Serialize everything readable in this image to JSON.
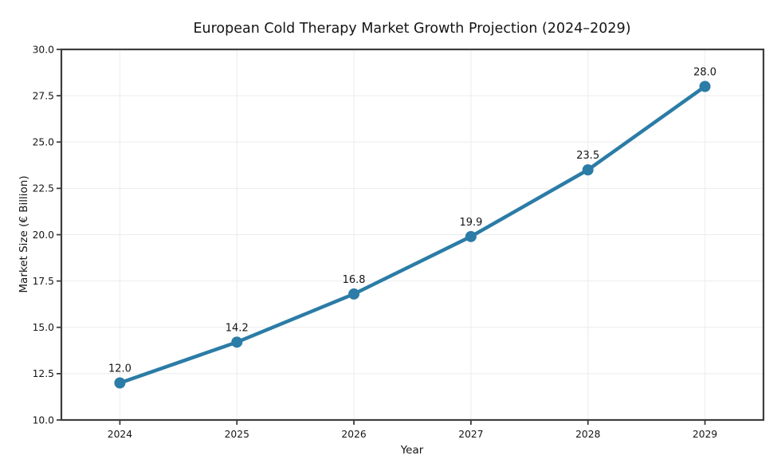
{
  "chart_data": {
    "type": "line",
    "title": "European Cold Therapy Market Growth Projection (2024–2029)",
    "xlabel": "Year",
    "ylabel": "Market Size (€ Billion)",
    "x": [
      2024,
      2025,
      2026,
      2027,
      2028,
      2029
    ],
    "values": [
      12.0,
      14.2,
      16.8,
      19.9,
      23.5,
      28.0
    ],
    "point_labels": [
      "12.0",
      "14.2",
      "16.8",
      "19.9",
      "23.5",
      "28.0"
    ],
    "xtick_values": [
      2024,
      2025,
      2026,
      2027,
      2028,
      2029
    ],
    "xtick_labels": [
      "2024",
      "2025",
      "2026",
      "2027",
      "2028",
      "2029"
    ],
    "ytick_values": [
      10,
      12.5,
      15,
      17.5,
      20,
      22.5,
      25,
      27.5,
      30
    ],
    "ytick_labels": [
      "10.0",
      "12.5",
      "15.0",
      "17.5",
      "20.0",
      "22.5",
      "25.0",
      "27.5",
      "30.0"
    ],
    "xlim": [
      2023.5,
      2029.5
    ],
    "ylim": [
      10,
      30
    ],
    "grid": true,
    "legend": "none",
    "colors": {
      "line": "#2b7ca6",
      "marker": "#2b7ca6",
      "grid": "#ececec",
      "spine": "#3d3d3d",
      "tick": "#3d3d3d",
      "text": "#151515",
      "background": "#ffffff"
    }
  }
}
